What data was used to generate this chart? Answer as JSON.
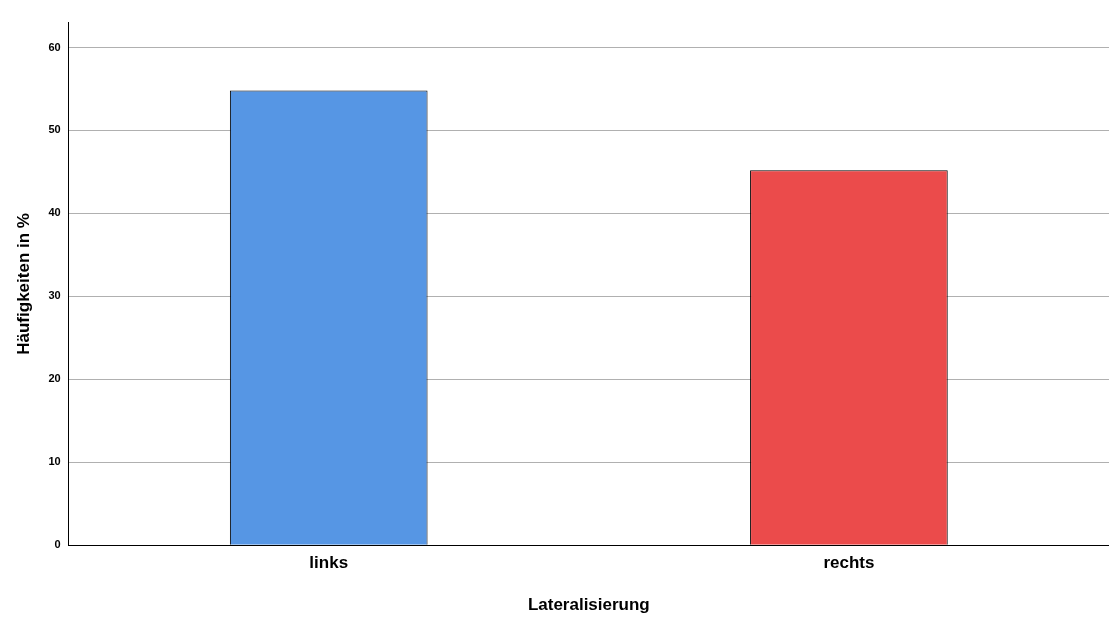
{
  "chart_data": {
    "type": "bar",
    "xlabel": "Lateralisierung",
    "ylabel": "Häufigkeiten in %",
    "categories": [
      "links",
      "rechts"
    ],
    "values": [
      54.8,
      45.2
    ],
    "colors": [
      "#5696e4",
      "#eb4b4b"
    ],
    "ylim": [
      0,
      63
    ],
    "yticks": [
      0,
      10,
      20,
      30,
      40,
      50,
      60
    ],
    "grid": "y",
    "legend": false
  }
}
